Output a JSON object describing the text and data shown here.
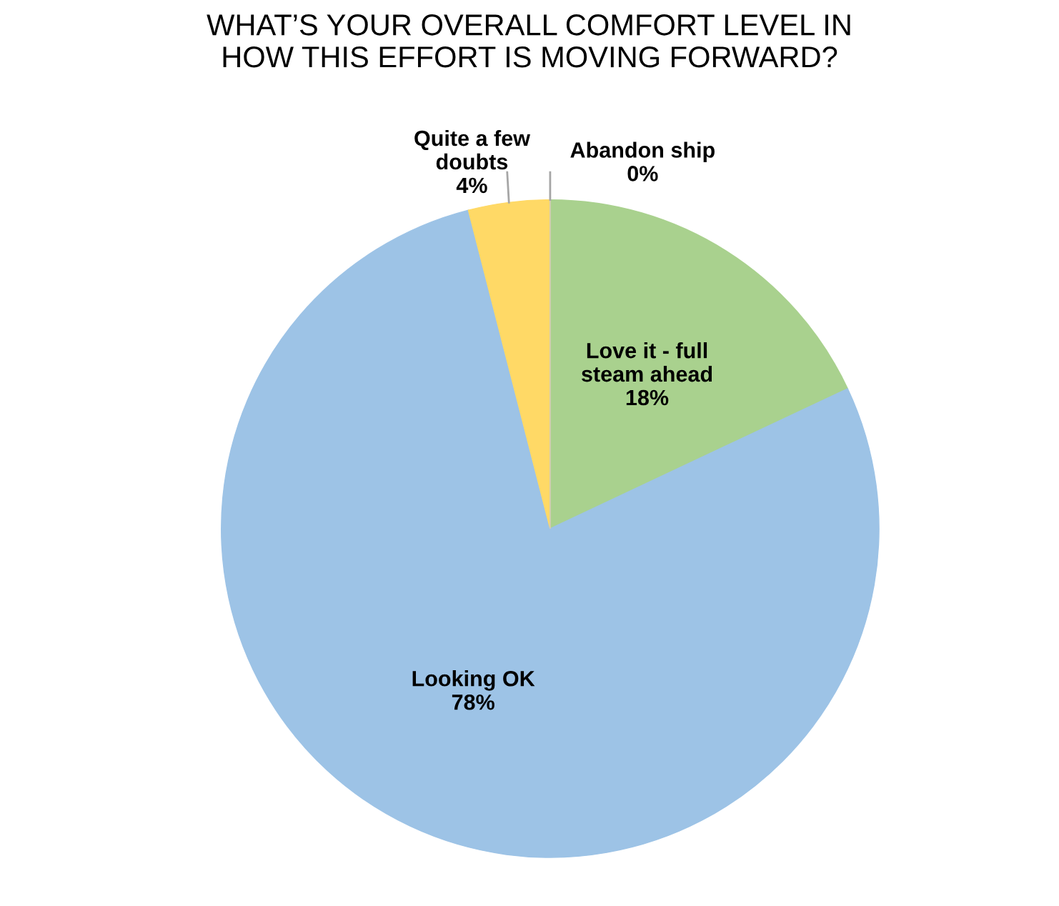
{
  "chart_data": {
    "type": "pie",
    "title": "WHAT’S YOUR OVERALL COMFORT LEVEL IN\nHOW THIS EFFORT IS MOVING FORWARD?",
    "categories": [
      "Love it - full\nsteam ahead",
      "Looking OK",
      "Quite a few\ndoubts",
      "Abandon ship"
    ],
    "values": [
      18,
      78,
      4,
      0
    ],
    "colors": [
      "#a9d18e",
      "#9dc3e6",
      "#ffd966",
      "#c9c9c9"
    ],
    "value_labels": [
      "18%",
      "78%",
      "4%",
      "0%"
    ],
    "legend": false
  }
}
